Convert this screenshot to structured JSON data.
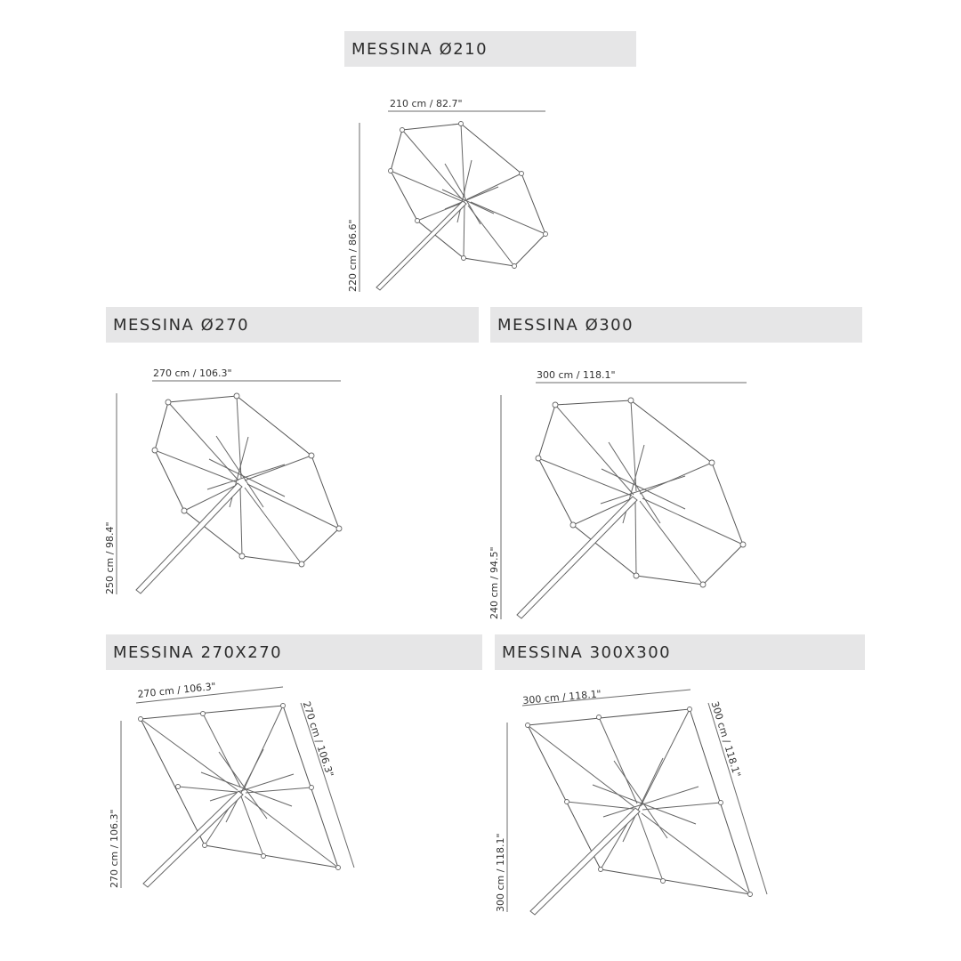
{
  "umbrellas": [
    {
      "id": "u210",
      "title": "MESSINA Ø210",
      "width_label": "210 cm / 82.7\"",
      "height_label": "220 cm / 86.6\""
    },
    {
      "id": "u270",
      "title": "MESSINA Ø270",
      "width_label": "270 cm / 106.3\"",
      "height_label": "250 cm / 98.4\""
    },
    {
      "id": "u300",
      "title": "MESSINA Ø300",
      "width_label": "300 cm / 118.1\"",
      "height_label": "240 cm / 94.5\""
    },
    {
      "id": "u270x270",
      "title": "MESSINA 270X270",
      "width_label": "270 cm / 106.3\"",
      "side_label": "270 cm / 106.3\"",
      "height_label": "270 cm / 106.3\""
    },
    {
      "id": "u300x300",
      "title": "MESSINA 300X300",
      "width_label": "300 cm / 118.1\"",
      "side_label": "300 cm / 118.1\"",
      "height_label": "300 cm / 118.1\""
    }
  ]
}
